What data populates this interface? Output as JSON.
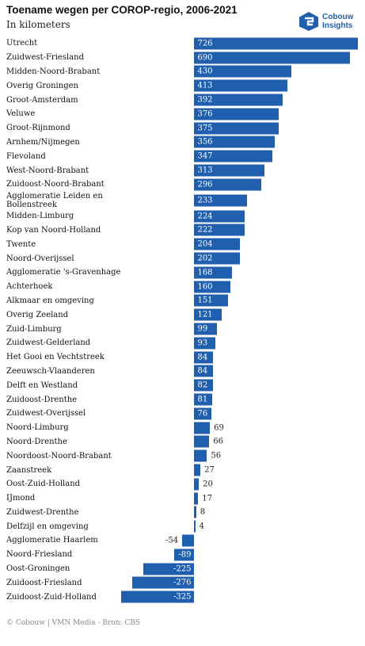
{
  "chart_data": {
    "type": "bar",
    "orientation": "horizontal",
    "title": "Toename wegen per COROP-regio, 2006-2021",
    "subtitle": "In kilometers",
    "color": "#1f5fad",
    "categories": [
      "Utrecht",
      "Zuidwest-Friesland",
      "Midden-Noord-Brabant",
      "Overig Groningen",
      "Groot-Amsterdam",
      "Veluwe",
      "Groot-Rijnmond",
      "Arnhem/Nijmegen",
      "Flevoland",
      "West-Noord-Brabant",
      "Zuidoost-Noord-Brabant",
      "Agglomeratie Leiden en Bollenstreek",
      "Midden-Limburg",
      "Kop van Noord-Holland",
      "Twente",
      "Noord-Overijssel",
      "Agglomeratie 's-Gravenhage",
      "Achterhoek",
      "Alkmaar en omgeving",
      "Overig Zeeland",
      "Zuid-Limburg",
      "Zuidwest-Gelderland",
      "Het Gooi en Vechtstreek",
      "Zeeuwsch-Vlaanderen",
      "Delft en Westland",
      "Zuidoost-Drenthe",
      "Zuidwest-Overijssel",
      "Noord-Limburg",
      "Noord-Drenthe",
      "Noordoost-Noord-Brabant",
      "Zaanstreek",
      "Oost-Zuid-Holland",
      "IJmond",
      "Zuidwest-Drenthe",
      "Delfzijl en omgeving",
      "Agglomeratie Haarlem",
      "Noord-Friesland",
      "Oost-Groningen",
      "Zuidoost-Friesland",
      "Zuidoost-Zuid-Holland"
    ],
    "values": [
      726,
      690,
      430,
      413,
      392,
      376,
      375,
      356,
      347,
      313,
      296,
      233,
      224,
      222,
      204,
      202,
      168,
      160,
      151,
      121,
      99,
      93,
      84,
      84,
      82,
      81,
      76,
      69,
      66,
      56,
      27,
      20,
      17,
      8,
      4,
      -54,
      -89,
      -225,
      -276,
      -325
    ],
    "source": "© Cobouw | VMN Media - Bron: CBS"
  },
  "logo": {
    "line1": "Cobouw",
    "line2": "Insights"
  }
}
